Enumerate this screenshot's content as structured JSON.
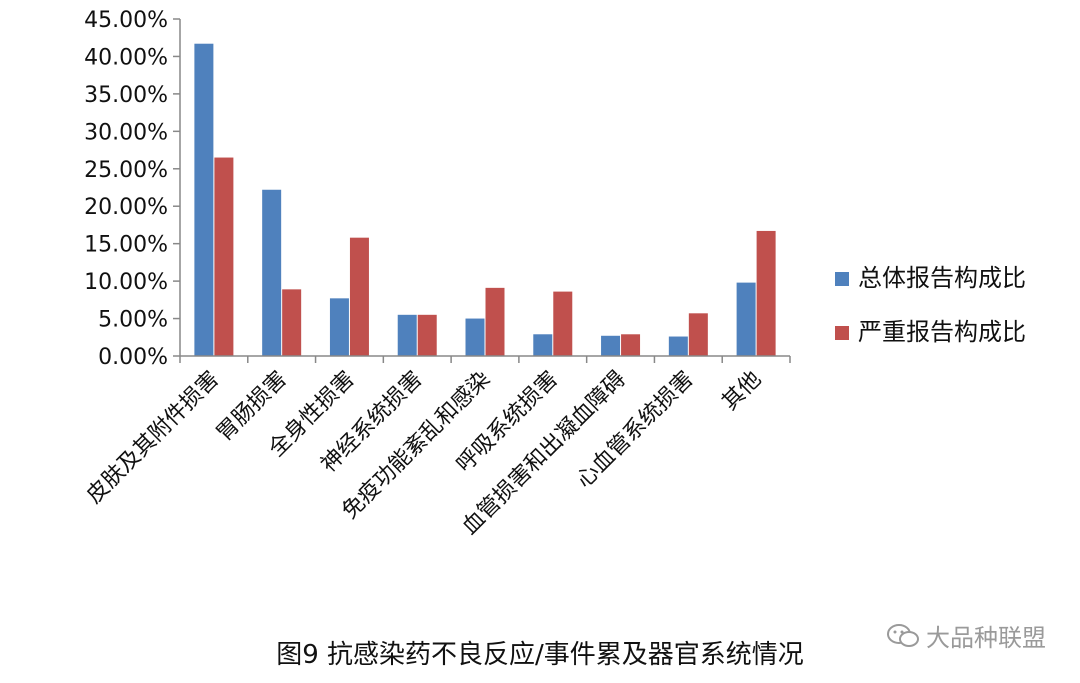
{
  "caption": "图9  抗感染药不良反应/事件累及器官系统情况",
  "watermark": "大品种联盟",
  "chart_data": {
    "type": "bar",
    "categories": [
      "皮肤及其附件损害",
      "胃肠损害",
      "全身性损害",
      "神经系统损害",
      "免疫功能紊乱和感染",
      "呼吸系统损害",
      "血管损害和出凝血障碍",
      "心血管系统损害",
      "其他"
    ],
    "series": [
      {
        "name": "总体报告构成比",
        "values": [
          41.7,
          22.2,
          7.7,
          5.5,
          5.0,
          2.9,
          2.7,
          2.6,
          9.8
        ],
        "color": "#4F81BD"
      },
      {
        "name": "严重报告构成比",
        "values": [
          26.5,
          8.9,
          15.8,
          5.5,
          9.1,
          8.6,
          2.9,
          5.7,
          16.7
        ],
        "color": "#C0504D"
      }
    ],
    "ylim": [
      0,
      45
    ],
    "yticks": [
      "0.00%",
      "5.00%",
      "10.00%",
      "15.00%",
      "20.00%",
      "25.00%",
      "30.00%",
      "35.00%",
      "40.00%",
      "45.00%"
    ],
    "legend_position": "right",
    "grid": false
  }
}
